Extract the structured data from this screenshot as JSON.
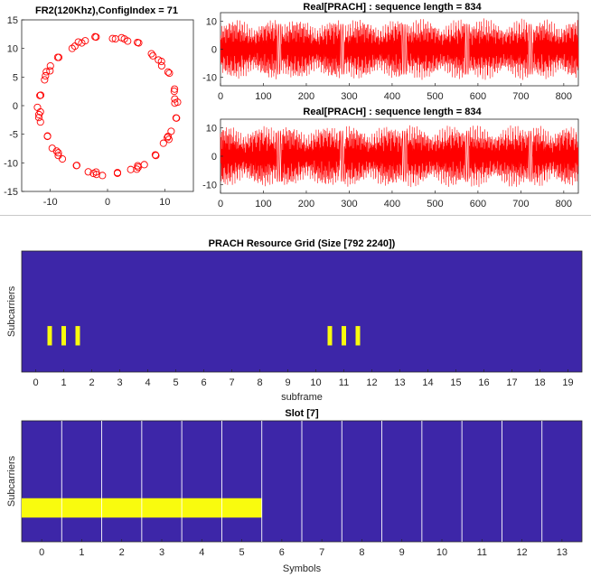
{
  "chart_data": [
    {
      "type": "scatter",
      "title": "FR2(120Khz),ConfigIndex = 71",
      "xlabel": "",
      "ylabel": "",
      "xlim": [
        -15,
        15
      ],
      "ylim": [
        -15,
        15
      ],
      "xticks": [
        -10,
        0,
        10
      ],
      "yticks": [
        15,
        10,
        5,
        0,
        -5,
        -10,
        -15
      ],
      "marker": "o",
      "color": "#ff0000",
      "series": [
        {
          "name": "constellation",
          "radius": 12,
          "num_points": 70
        }
      ]
    },
    {
      "type": "line",
      "title": "Real[PRACH] : sequence length = 834",
      "xlim": [
        0,
        834
      ],
      "ylim": [
        -13,
        13
      ],
      "xticks": [
        0,
        100,
        200,
        300,
        400,
        500,
        600,
        700,
        800
      ],
      "yticks": [
        10,
        0,
        -10
      ],
      "color": "#ff0000",
      "bursts": [
        [
          0,
          130
        ],
        [
          143,
          278
        ],
        [
          289,
          422
        ],
        [
          435,
          569
        ],
        [
          580,
          716
        ],
        [
          728,
          834
        ]
      ]
    },
    {
      "type": "line",
      "title": "Real[PRACH] : sequence length = 834",
      "xlim": [
        0,
        834
      ],
      "ylim": [
        -13,
        13
      ],
      "xticks": [
        0,
        100,
        200,
        300,
        400,
        500,
        600,
        700,
        800
      ],
      "yticks": [
        10,
        0,
        -10
      ],
      "color": "#ff0000",
      "bursts": [
        [
          0,
          130
        ],
        [
          143,
          278
        ],
        [
          289,
          422
        ],
        [
          435,
          569
        ],
        [
          580,
          716
        ],
        [
          728,
          834
        ]
      ]
    },
    {
      "type": "heatmap",
      "title": "PRACH Resource Grid (Size [792 2240])",
      "xlabel": "subframe",
      "ylabel": "Subcarriers",
      "xlim": [
        -0.5,
        19.5
      ],
      "xticks": [
        0,
        1,
        2,
        3,
        4,
        5,
        6,
        7,
        8,
        9,
        10,
        11,
        12,
        13,
        14,
        15,
        16,
        17,
        18,
        19
      ],
      "background_color": "#3d26a8",
      "highlight_color": "#f9fb0e",
      "highlights": [
        {
          "x": 0.5,
          "y0": 0.62,
          "y1": 0.78
        },
        {
          "x": 1.0,
          "y0": 0.62,
          "y1": 0.78
        },
        {
          "x": 1.5,
          "y0": 0.62,
          "y1": 0.78
        },
        {
          "x": 10.5,
          "y0": 0.62,
          "y1": 0.78
        },
        {
          "x": 11.0,
          "y0": 0.62,
          "y1": 0.78
        },
        {
          "x": 11.5,
          "y0": 0.62,
          "y1": 0.78
        }
      ]
    },
    {
      "type": "heatmap",
      "title": "Slot [7]",
      "xlabel": "Symbols",
      "ylabel": "Subcarriers",
      "xlim": [
        -0.5,
        13.5
      ],
      "xticks": [
        0,
        1,
        2,
        3,
        4,
        5,
        6,
        7,
        8,
        9,
        10,
        11,
        12,
        13
      ],
      "background_color": "#3d26a8",
      "highlight_color": "#f9fb0e",
      "symbol_boundaries": [
        0.5,
        1.5,
        2.5,
        3.5,
        4.5,
        5.5,
        6.5,
        7.5,
        8.5,
        9.5,
        10.5,
        11.5,
        12.5
      ],
      "highlight_region": {
        "x0": -0.5,
        "x1": 5.5,
        "y0": 0.64,
        "y1": 0.8
      }
    }
  ]
}
